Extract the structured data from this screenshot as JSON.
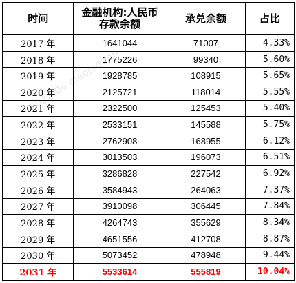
{
  "table": {
    "headers": [
      "时间",
      "金融机构:人民币存款余额",
      "承兑余额",
      "占比"
    ],
    "header_line1": "金融机构:人民币",
    "header_line2": "存款余额",
    "rows": [
      {
        "year": "2017 年",
        "deposits": "1641044",
        "acceptance": "71007",
        "share": "4.33%"
      },
      {
        "year": "2018 年",
        "deposits": "1775226",
        "acceptance": "99340",
        "share": "5.60%"
      },
      {
        "year": "2019 年",
        "deposits": "1928785",
        "acceptance": "108915",
        "share": "5.65%"
      },
      {
        "year": "2020 年",
        "deposits": "2125721",
        "acceptance": "118014",
        "share": "5.55%"
      },
      {
        "year": "2021 年",
        "deposits": "2322500",
        "acceptance": "125453",
        "share": "5.40%"
      },
      {
        "year": "2022 年",
        "deposits": "2533151",
        "acceptance": "145588",
        "share": "5.75%"
      },
      {
        "year": "2023 年",
        "deposits": "2762908",
        "acceptance": "168955",
        "share": "6.12%"
      },
      {
        "year": "2024 年",
        "deposits": "3013503",
        "acceptance": "196073",
        "share": "6.51%"
      },
      {
        "year": "2025 年",
        "deposits": "3286828",
        "acceptance": "227542",
        "share": "6.92%"
      },
      {
        "year": "2026 年",
        "deposits": "3584943",
        "acceptance": "264063",
        "share": "7.37%"
      },
      {
        "year": "2027 年",
        "deposits": "3910098",
        "acceptance": "306445",
        "share": "7.84%"
      },
      {
        "year": "2028 年",
        "deposits": "4264743",
        "acceptance": "355629",
        "share": "8.34%"
      },
      {
        "year": "2029 年",
        "deposits": "4651556",
        "acceptance": "412708",
        "share": "8.87%"
      },
      {
        "year": "2030 年",
        "deposits": "5073452",
        "acceptance": "478948",
        "share": "9.44%"
      },
      {
        "year": "2031 年",
        "deposits": "5533614",
        "acceptance": "555819",
        "share": "10.04%"
      }
    ],
    "highlight_row_index": 14,
    "highlight_color": "#ff0000",
    "border_color": "#000000"
  },
  "watermark": {
    "text": "2022-06  piaojuquan"
  }
}
